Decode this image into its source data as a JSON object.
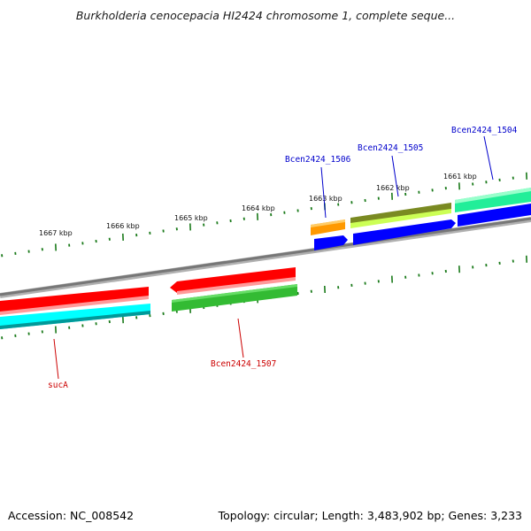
{
  "title": "Burkholderia cenocepacia HI2424 chromosome 1, complete seque...",
  "footer": {
    "accession": "Accession: NC_008542",
    "info": "Topology: circular; Length: 3,483,902 bp; Genes: 3,233"
  },
  "tick_labels": [
    "1667 kbp",
    "1666 kbp",
    "1665 kbp",
    "1664 kbp",
    "1663 kbp",
    "1662 kbp",
    "1661 kbp"
  ],
  "gene_labels": [
    {
      "id": "g1506",
      "text": "Bcen2424_1506",
      "color": "#0000cc"
    },
    {
      "id": "g1505",
      "text": "Bcen2424_1505",
      "color": "#0000cc"
    },
    {
      "id": "g1504",
      "text": "Bcen2424_1504",
      "color": "#0000cc"
    },
    {
      "id": "gsucA",
      "text": "sucA",
      "color": "#cc0000"
    },
    {
      "id": "g1507",
      "text": "Bcen2424_1507",
      "color": "#cc0000"
    }
  ],
  "colors": {
    "backbone": "#808080",
    "tick": "#1a7a1a",
    "red_cds": "#ff0000",
    "cyan_cds": "#00ffff",
    "green_cds": "#33bb33",
    "blue_cds": "#0000ff",
    "orange_cds": "#ff9900",
    "olive_cds": "#7a8a22",
    "lime_cds": "#ccff55",
    "teal_cds": "#22ee99"
  }
}
